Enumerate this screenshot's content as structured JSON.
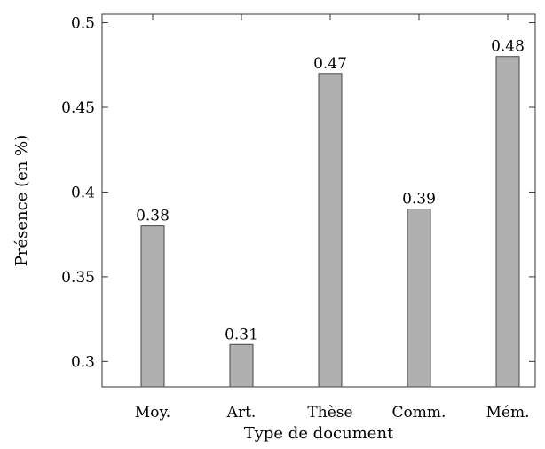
{
  "chart_data": {
    "type": "bar",
    "categories": [
      "Moy.",
      "Art.",
      "Thèse",
      "Comm.",
      "Mém."
    ],
    "values": [
      0.38,
      0.31,
      0.47,
      0.39,
      0.48
    ],
    "data_labels": [
      "0.38",
      "0.31",
      "0.47",
      "0.39",
      "0.48"
    ],
    "title": "",
    "xlabel": "Type de document",
    "ylabel": "Présence (en %)",
    "ylim": [
      0.285,
      0.505
    ],
    "yticks": [
      0.3,
      0.35,
      0.4,
      0.45,
      0.5
    ],
    "ytick_labels": [
      "0.3",
      "0.35",
      "0.4",
      "0.45",
      "0.5"
    ],
    "grid": false,
    "legend": "none",
    "bar_color": "#b0b0b0",
    "bar_edge_color": "#444444"
  }
}
